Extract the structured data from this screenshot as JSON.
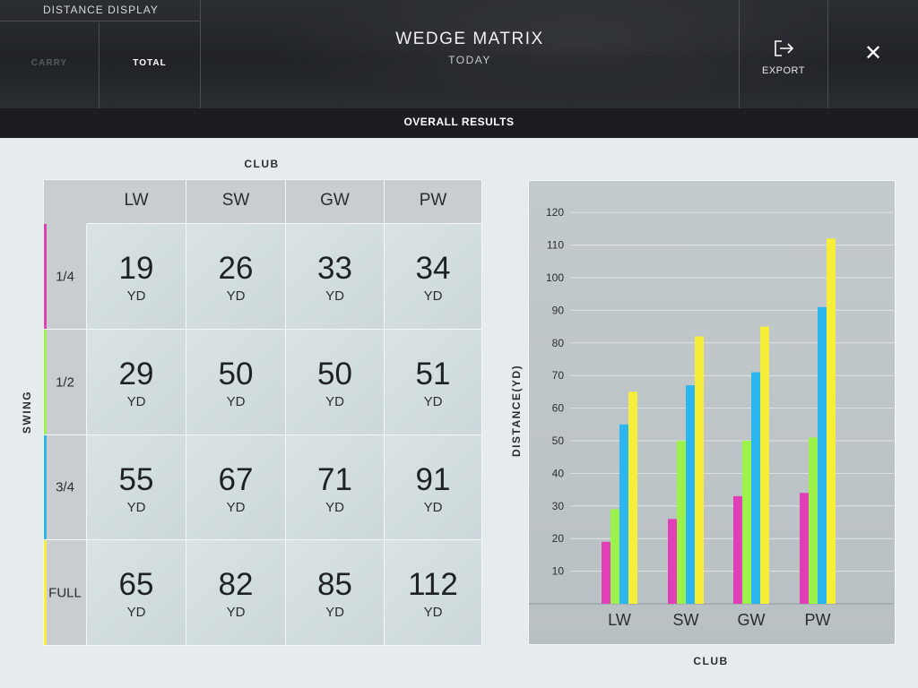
{
  "header": {
    "distance_display": {
      "title": "DISTANCE DISPLAY",
      "options": [
        "CARRY",
        "TOTAL"
      ],
      "selected": "TOTAL"
    },
    "title": "WEDGE MATRIX",
    "subtitle": "TODAY",
    "export_label": "EXPORT",
    "close_glyph": "✕"
  },
  "section_title": "OVERALL RESULTS",
  "matrix": {
    "column_axis_label": "CLUB",
    "row_axis_label": "SWING",
    "clubs": [
      "LW",
      "SW",
      "GW",
      "PW"
    ],
    "unit": "YD",
    "rows": [
      {
        "swing": "1/4",
        "accent": "#e03fb8",
        "values": [
          "19",
          "26",
          "33",
          "34"
        ]
      },
      {
        "swing": "1/2",
        "accent": "#9cf24a",
        "values": [
          "29",
          "50",
          "50",
          "51"
        ]
      },
      {
        "swing": "3/4",
        "accent": "#2cb6f0",
        "values": [
          "55",
          "67",
          "71",
          "91"
        ]
      },
      {
        "swing": "FULL",
        "accent": "#f7ee3a",
        "values": [
          "65",
          "82",
          "85",
          "112"
        ]
      }
    ]
  },
  "chart_data": {
    "type": "bar",
    "categories": [
      "LW",
      "SW",
      "GW",
      "PW"
    ],
    "series": [
      {
        "color": "#e03fb8",
        "values": [
          19,
          26,
          33,
          34
        ]
      },
      {
        "color": "#9cf24a",
        "values": [
          29,
          50,
          50,
          51
        ]
      },
      {
        "color": "#2cb6f0",
        "values": [
          55,
          67,
          71,
          91
        ]
      },
      {
        "color": "#f7ee3a",
        "values": [
          65,
          82,
          85,
          112
        ]
      }
    ],
    "xlabel": "CLUB",
    "ylabel": "DISTANCE(YD)",
    "ylim": [
      0,
      120
    ],
    "yticks": [
      10,
      20,
      30,
      40,
      50,
      60,
      70,
      80,
      90,
      100,
      110,
      120
    ],
    "grid": true,
    "legend": "none"
  }
}
